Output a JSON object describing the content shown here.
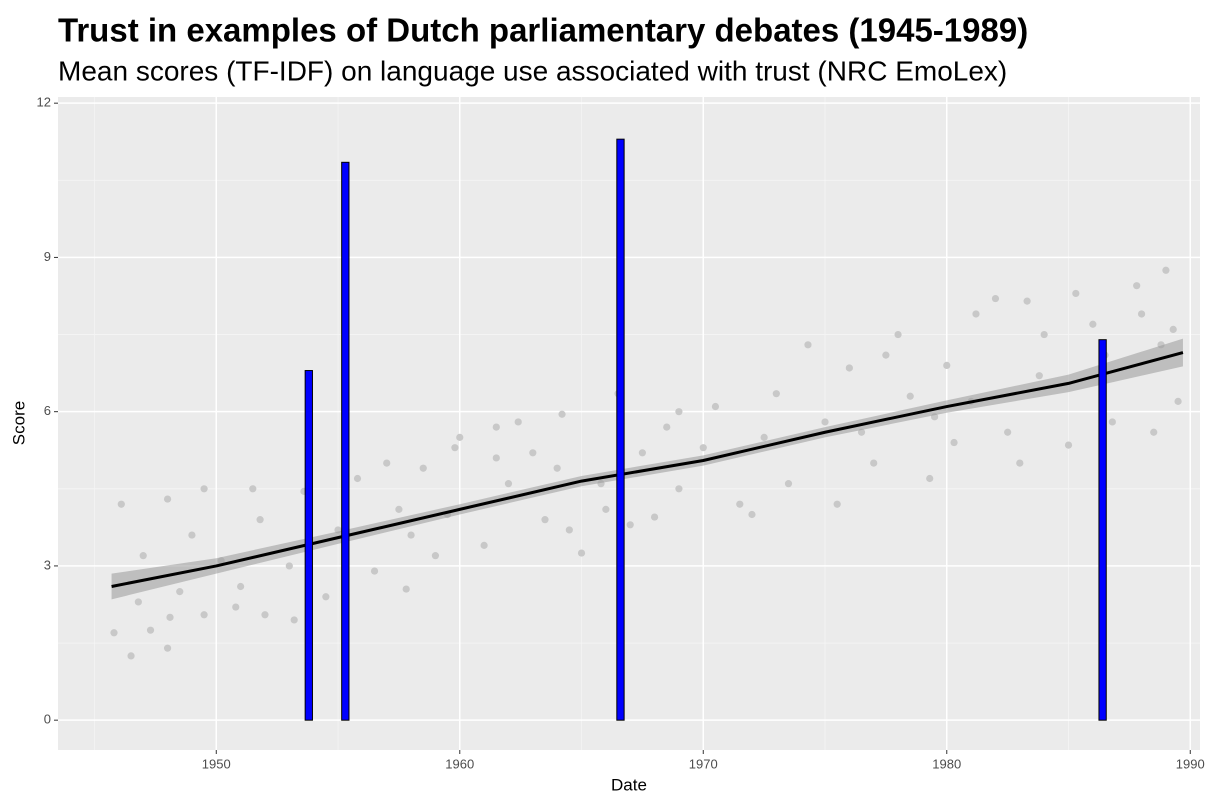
{
  "chart_data": {
    "type": "layered",
    "title": "Trust in examples of Dutch parliamentary debates (1945-1989)",
    "subtitle": "Mean scores (TF-IDF) on language use associated with trust (NRC EmoLex)",
    "x_label": "Date",
    "y_label": "Score",
    "xlim": [
      1943.5,
      1990.4
    ],
    "ylim": [
      -0.58,
      12.12
    ],
    "xticks": [
      1950,
      1960,
      1970,
      1980,
      1990
    ],
    "yticks": [
      0,
      3,
      6,
      9,
      12
    ],
    "grid": true,
    "series": [
      {
        "type": "scatter",
        "color": "#c8c8c8",
        "x": [
          1946.5,
          1948,
          1945.8,
          1947.3,
          1948.1,
          1949.5,
          1950.8,
          1952,
          1953.2,
          1957.8,
          1946.1,
          1948,
          1949.5,
          1951.5,
          1953.6,
          1955.8,
          1957,
          1958.5,
          1960,
          1961.5,
          1963,
          1959.8,
          1961.5,
          1962.4,
          1964.2,
          1966.5,
          1969,
          1970.5,
          1973,
          1974.3,
          1976,
          1977.5,
          1978,
          1980,
          1981.2,
          1982,
          1983.3,
          1984,
          1985.3,
          1986,
          1987.8,
          1988,
          1989,
          1989.3,
          1989.5,
          1988.5,
          1986.8,
          1985,
          1983,
          1982.5,
          1980.3,
          1979.3,
          1977,
          1975.5,
          1973.5,
          1972,
          1971.5,
          1969,
          1968,
          1967,
          1966,
          1965,
          1964.5,
          1963.5,
          1961,
          1959,
          1956.5,
          1954.5,
          1951,
          1948.5,
          1946.8,
          1947,
          1949,
          1951.8,
          1955,
          1957.5,
          1959.5,
          1962,
          1964,
          1967.5,
          1970,
          1972.5,
          1975,
          1978.5,
          1981,
          1983.8,
          1986.5,
          1988.8,
          1965.8,
          1958,
          1953,
          1950.2,
          1976.5,
          1979.5,
          1968.5
        ],
        "values": [
          1.25,
          1.4,
          1.7,
          1.75,
          2.0,
          2.05,
          2.2,
          2.05,
          1.95,
          2.55,
          4.2,
          4.3,
          4.5,
          4.5,
          4.45,
          4.7,
          5.0,
          4.9,
          5.5,
          5.1,
          5.2,
          5.3,
          5.7,
          5.8,
          5.95,
          6.35,
          6.0,
          6.1,
          6.35,
          7.3,
          6.85,
          7.1,
          7.5,
          6.9,
          7.9,
          8.2,
          8.15,
          7.5,
          8.3,
          7.7,
          8.45,
          7.9,
          8.75,
          7.6,
          6.2,
          5.6,
          5.8,
          5.35,
          5.0,
          5.6,
          5.4,
          4.7,
          5.0,
          4.2,
          4.6,
          4.0,
          4.2,
          4.5,
          3.95,
          3.8,
          4.1,
          3.25,
          3.7,
          3.9,
          3.4,
          3.2,
          2.9,
          2.4,
          2.6,
          2.5,
          2.3,
          3.2,
          3.6,
          3.9,
          3.7,
          4.1,
          4.0,
          4.6,
          4.9,
          5.2,
          5.3,
          5.5,
          5.8,
          6.3,
          6.2,
          6.7,
          7.1,
          7.3,
          4.6,
          3.6,
          3.0,
          3.1,
          5.6,
          5.9,
          5.7
        ]
      },
      {
        "type": "ribbon",
        "color": "#999999",
        "x": [
          1945.7,
          1950,
          1955,
          1960,
          1965,
          1970,
          1975,
          1980,
          1985,
          1989.7
        ],
        "lower": [
          2.35,
          2.85,
          3.43,
          4.0,
          4.55,
          4.95,
          5.5,
          5.98,
          6.38,
          6.88
        ],
        "upper": [
          2.85,
          3.15,
          3.67,
          4.2,
          4.75,
          5.15,
          5.7,
          6.22,
          6.72,
          7.42
        ]
      },
      {
        "type": "line",
        "color": "#000000",
        "x": [
          1945.7,
          1950,
          1955,
          1960,
          1965,
          1970,
          1975,
          1980,
          1985,
          1989.7
        ],
        "values": [
          2.6,
          3.0,
          3.55,
          4.1,
          4.65,
          5.05,
          5.6,
          6.1,
          6.55,
          7.15
        ]
      },
      {
        "type": "bar",
        "color": "#0000ff",
        "x": [
          1953.8,
          1955.3,
          1966.6,
          1986.4
        ],
        "values": [
          6.8,
          10.85,
          11.3,
          7.4
        ]
      }
    ]
  }
}
